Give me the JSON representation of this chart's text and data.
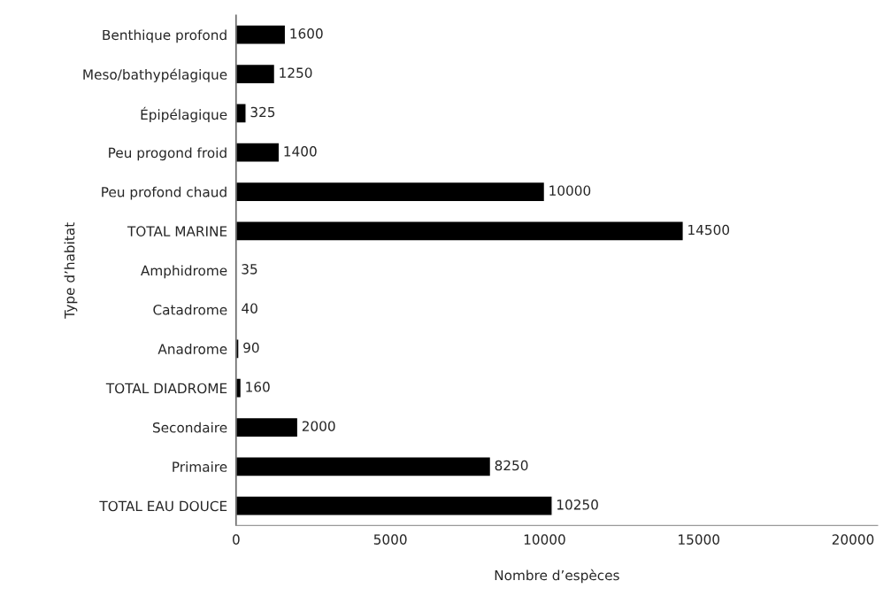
{
  "chart_data": {
    "type": "bar",
    "orientation": "horizontal",
    "xlabel": "Nombre d’espèces",
    "ylabel": "Type d’habitat",
    "categories": [
      "Benthique profond",
      "Meso/bathypélagique",
      "Épipélagique",
      "Peu progond froid",
      "Peu profond chaud",
      "TOTAL MARINE",
      "Amphidrome",
      "Catadrome",
      "Anadrome",
      "TOTAL DIADROME",
      "Secondaire",
      "Primaire",
      "TOTAL EAU DOUCE"
    ],
    "values": [
      1600,
      1250,
      325,
      1400,
      10000,
      14500,
      35,
      40,
      90,
      160,
      2000,
      8250,
      10250
    ],
    "color": "#000000",
    "data_labels": true,
    "grid": false,
    "legend": false,
    "xlim": [
      0,
      20800
    ],
    "xticks": [
      0,
      5000,
      10000,
      15000,
      20000
    ]
  }
}
